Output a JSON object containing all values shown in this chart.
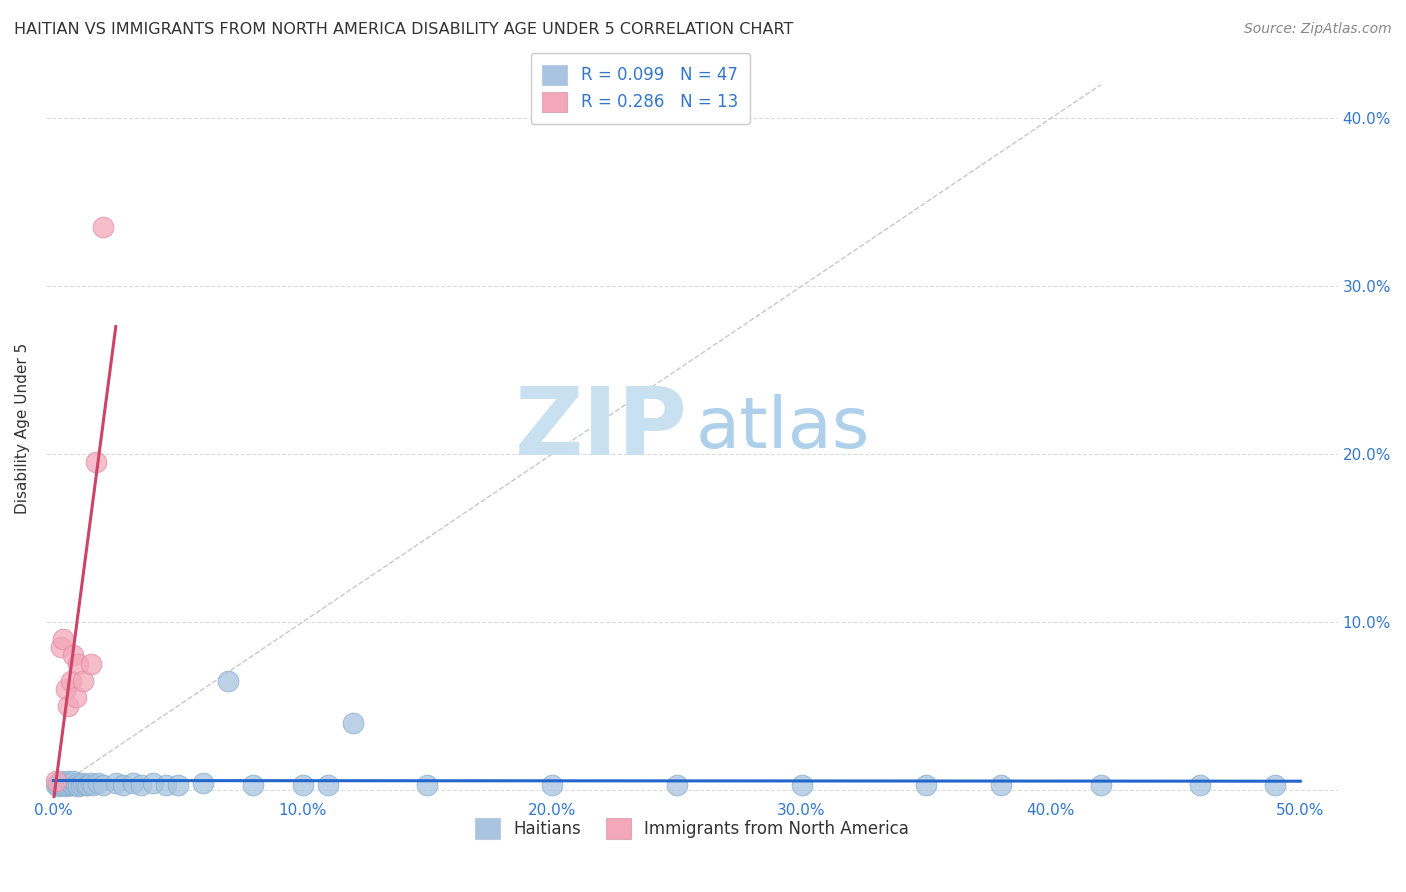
{
  "title": "HAITIAN VS IMMIGRANTS FROM NORTH AMERICA DISABILITY AGE UNDER 5 CORRELATION CHART",
  "source": "Source: ZipAtlas.com",
  "ylabel": "Disability Age Under 5",
  "xlim": [
    -0.003,
    0.515
  ],
  "ylim": [
    -0.005,
    0.435
  ],
  "xticks": [
    0.0,
    0.1,
    0.2,
    0.3,
    0.4,
    0.5
  ],
  "xticklabels": [
    "0.0%",
    "10.0%",
    "20.0%",
    "30.0%",
    "40.0%",
    "50.0%"
  ],
  "yticks": [
    0.0,
    0.1,
    0.2,
    0.3,
    0.4
  ],
  "left_yticklabels": [
    "",
    "",
    "",
    "",
    ""
  ],
  "right_yticklabels": [
    "",
    "10.0%",
    "20.0%",
    "30.0%",
    "40.0%"
  ],
  "legend_label1": "Haitians",
  "legend_label2": "Immigrants from North America",
  "R1": "0.099",
  "N1": "47",
  "R2": "0.286",
  "N2": "13",
  "color_haitian": "#a8c4e0",
  "color_haitian_edge": "#8ab0d0",
  "color_immigrant": "#f4a7b9",
  "color_immigrant_edge": "#e090a8",
  "trendline_color_haitian": "#2266cc",
  "trendline_color_immigrant": "#cc4466",
  "diag_line_color": "#c8c8c8",
  "watermark_color1": "#c8e0f0",
  "watermark_color2": "#a0c8e8",
  "grid_color": "#dddddd",
  "title_color": "#333333",
  "source_color": "#888888",
  "tick_color_x": "#3377cc",
  "tick_color_yr": "#3377cc",
  "tick_color_yl": "#555555",
  "haitian_x": [
    0.001,
    0.002,
    0.002,
    0.003,
    0.003,
    0.004,
    0.005,
    0.005,
    0.006,
    0.006,
    0.007,
    0.007,
    0.008,
    0.008,
    0.009,
    0.01,
    0.01,
    0.011,
    0.012,
    0.013,
    0.014,
    0.015,
    0.016,
    0.018,
    0.02,
    0.025,
    0.028,
    0.032,
    0.035,
    0.04,
    0.045,
    0.05,
    0.06,
    0.07,
    0.08,
    0.1,
    0.11,
    0.12,
    0.15,
    0.2,
    0.25,
    0.3,
    0.35,
    0.38,
    0.42,
    0.46,
    0.49
  ],
  "haitian_y": [
    0.003,
    0.004,
    0.002,
    0.003,
    0.005,
    0.003,
    0.004,
    0.002,
    0.003,
    0.005,
    0.003,
    0.004,
    0.003,
    0.005,
    0.003,
    0.004,
    0.002,
    0.003,
    0.004,
    0.003,
    0.003,
    0.004,
    0.003,
    0.004,
    0.003,
    0.004,
    0.003,
    0.004,
    0.003,
    0.004,
    0.003,
    0.003,
    0.004,
    0.065,
    0.003,
    0.003,
    0.003,
    0.04,
    0.003,
    0.003,
    0.003,
    0.003,
    0.003,
    0.003,
    0.003,
    0.003,
    0.003
  ],
  "immigrant_x": [
    0.001,
    0.003,
    0.004,
    0.005,
    0.006,
    0.007,
    0.008,
    0.009,
    0.01,
    0.012,
    0.015,
    0.017,
    0.02
  ],
  "immigrant_y": [
    0.005,
    0.085,
    0.09,
    0.06,
    0.05,
    0.065,
    0.08,
    0.055,
    0.075,
    0.065,
    0.075,
    0.195,
    0.335
  ],
  "haitian_trend_x": [
    0.0,
    0.5
  ],
  "haitian_trend_slope": 0.008,
  "haitian_trend_intercept": 0.003,
  "immigrant_trend_x_start": 0.0,
  "immigrant_trend_x_end": 0.025,
  "immigrant_trend_slope": 14.0,
  "immigrant_trend_intercept": 0.005
}
